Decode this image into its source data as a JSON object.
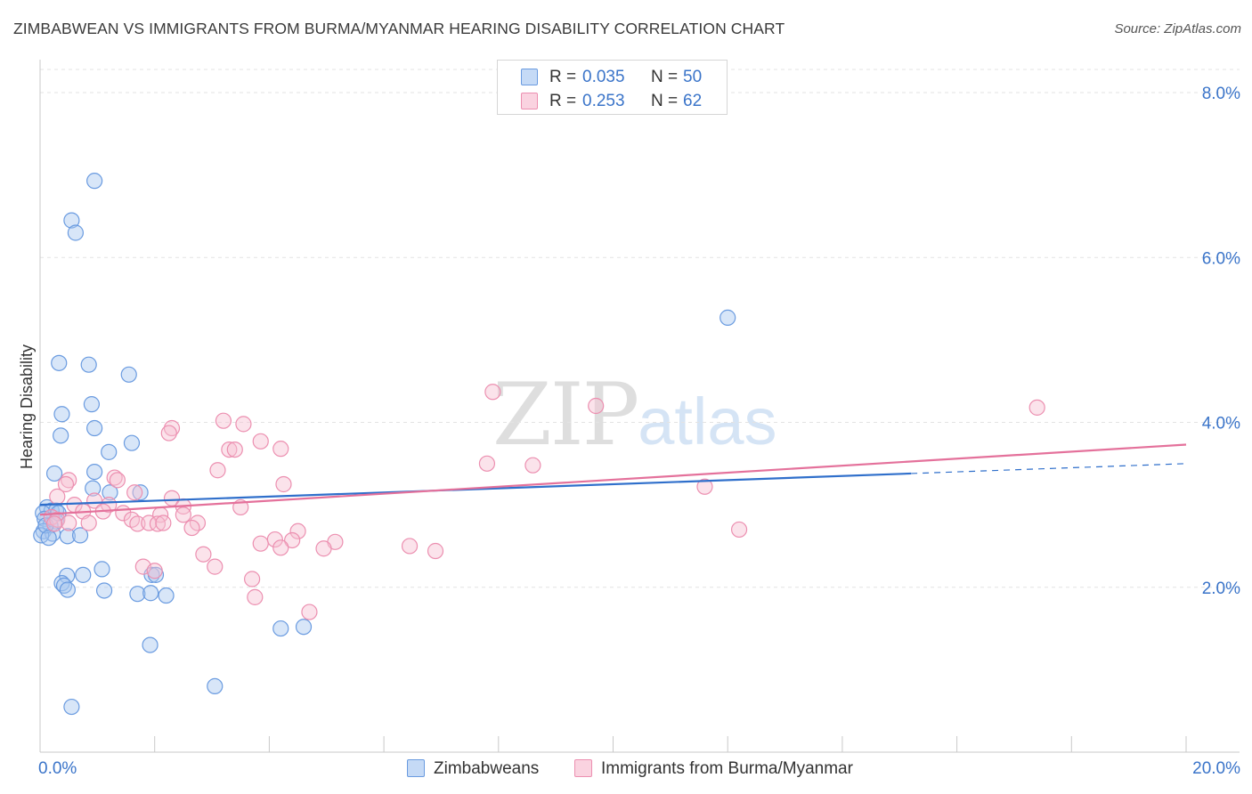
{
  "title": "ZIMBABWEAN VS IMMIGRANTS FROM BURMA/MYANMAR HEARING DISABILITY CORRELATION CHART",
  "source": "Source: ZipAtlas.com",
  "watermark": {
    "zip": "ZIP",
    "atlas": "atlas"
  },
  "colors": {
    "blue_fill": "#a9c8f0",
    "blue_stroke": "#6a9be0",
    "blue_line": "#2f6fcb",
    "pink_fill": "#f7c0d2",
    "pink_stroke": "#ec8fb0",
    "pink_line": "#e4719b",
    "tick_label": "#3a74c9",
    "grid": "#e3e3e3"
  },
  "legend": {
    "series1": {
      "r_label": "R = ",
      "r_value": "0.035",
      "n_label": "N = ",
      "n_value": "50"
    },
    "series2": {
      "r_label": "R = ",
      "r_value": "0.253",
      "n_label": "N = ",
      "n_value": "62"
    }
  },
  "chart_data": {
    "type": "scatter",
    "title": "ZIMBABWEAN VS IMMIGRANTS FROM BURMA/MYANMAR HEARING DISABILITY CORRELATION CHART",
    "xlabel": "",
    "ylabel": "Hearing Disability",
    "xlim": [
      0,
      20
    ],
    "ylim": [
      0,
      8.4
    ],
    "y_ticks": [
      2,
      4,
      6,
      8
    ],
    "y_tick_labels": [
      "2.0%",
      "4.0%",
      "6.0%",
      "8.0%"
    ],
    "x_tick_labels": {
      "min": "0.0%",
      "max": "20.0%"
    },
    "legend_position": "top-center",
    "series": [
      {
        "name": "Zimbabweans",
        "r": 0.035,
        "n": 50,
        "trend": {
          "x0": 0,
          "y0": 3.0,
          "x1": 15.2,
          "y1": 3.38,
          "dash_to_x": 20,
          "dash_to_y": 3.5
        },
        "points": [
          [
            0.95,
            6.93
          ],
          [
            0.55,
            6.45
          ],
          [
            0.62,
            6.3
          ],
          [
            12.0,
            5.27
          ],
          [
            0.33,
            4.72
          ],
          [
            0.85,
            4.7
          ],
          [
            1.55,
            4.58
          ],
          [
            0.9,
            4.22
          ],
          [
            0.38,
            4.1
          ],
          [
            0.95,
            3.93
          ],
          [
            0.36,
            3.84
          ],
          [
            1.6,
            3.75
          ],
          [
            1.2,
            3.64
          ],
          [
            0.25,
            3.38
          ],
          [
            0.95,
            3.4
          ],
          [
            0.92,
            3.2
          ],
          [
            1.22,
            3.15
          ],
          [
            1.75,
            3.15
          ],
          [
            0.12,
            2.97
          ],
          [
            0.2,
            2.93
          ],
          [
            0.28,
            2.93
          ],
          [
            0.05,
            2.9
          ],
          [
            0.08,
            2.83
          ],
          [
            0.28,
            2.8
          ],
          [
            0.18,
            2.75
          ],
          [
            0.06,
            2.68
          ],
          [
            0.22,
            2.65
          ],
          [
            0.02,
            2.63
          ],
          [
            0.48,
            2.62
          ],
          [
            0.7,
            2.63
          ],
          [
            1.08,
            2.22
          ],
          [
            0.47,
            2.14
          ],
          [
            0.75,
            2.15
          ],
          [
            1.95,
            2.15
          ],
          [
            2.02,
            2.15
          ],
          [
            0.38,
            2.05
          ],
          [
            0.42,
            2.02
          ],
          [
            0.48,
            1.97
          ],
          [
            1.12,
            1.96
          ],
          [
            1.7,
            1.92
          ],
          [
            1.93,
            1.93
          ],
          [
            2.2,
            1.9
          ],
          [
            4.2,
            1.5
          ],
          [
            4.6,
            1.52
          ],
          [
            1.92,
            1.3
          ],
          [
            3.05,
            0.8
          ],
          [
            0.55,
            0.55
          ],
          [
            0.1,
            2.75
          ],
          [
            0.15,
            2.6
          ],
          [
            0.32,
            2.9
          ]
        ]
      },
      {
        "name": "Immigrants from Burma/Myanmar",
        "r": 0.253,
        "n": 62,
        "trend": {
          "x0": 0,
          "y0": 2.88,
          "x1": 20,
          "y1": 3.73
        },
        "points": [
          [
            7.9,
            4.37
          ],
          [
            9.7,
            4.2
          ],
          [
            17.4,
            4.18
          ],
          [
            3.2,
            4.02
          ],
          [
            3.55,
            3.98
          ],
          [
            2.3,
            3.93
          ],
          [
            2.25,
            3.87
          ],
          [
            3.85,
            3.77
          ],
          [
            3.3,
            3.67
          ],
          [
            3.4,
            3.67
          ],
          [
            4.2,
            3.68
          ],
          [
            7.8,
            3.5
          ],
          [
            8.6,
            3.48
          ],
          [
            3.1,
            3.42
          ],
          [
            0.5,
            3.3
          ],
          [
            1.3,
            3.33
          ],
          [
            1.35,
            3.3
          ],
          [
            4.25,
            3.25
          ],
          [
            1.65,
            3.15
          ],
          [
            11.6,
            3.22
          ],
          [
            0.95,
            3.05
          ],
          [
            2.3,
            3.08
          ],
          [
            0.6,
            3.0
          ],
          [
            1.2,
            3.0
          ],
          [
            2.5,
            2.98
          ],
          [
            3.5,
            2.97
          ],
          [
            0.75,
            2.92
          ],
          [
            1.1,
            2.92
          ],
          [
            1.45,
            2.9
          ],
          [
            2.1,
            2.88
          ],
          [
            2.5,
            2.88
          ],
          [
            0.2,
            2.85
          ],
          [
            0.3,
            2.82
          ],
          [
            1.6,
            2.82
          ],
          [
            0.5,
            2.78
          ],
          [
            0.25,
            2.77
          ],
          [
            1.7,
            2.77
          ],
          [
            1.9,
            2.78
          ],
          [
            2.05,
            2.77
          ],
          [
            2.15,
            2.78
          ],
          [
            0.85,
            2.78
          ],
          [
            2.75,
            2.78
          ],
          [
            2.65,
            2.72
          ],
          [
            4.5,
            2.68
          ],
          [
            12.2,
            2.7
          ],
          [
            4.1,
            2.58
          ],
          [
            4.4,
            2.57
          ],
          [
            3.85,
            2.53
          ],
          [
            5.15,
            2.55
          ],
          [
            4.95,
            2.47
          ],
          [
            4.2,
            2.48
          ],
          [
            6.45,
            2.5
          ],
          [
            6.9,
            2.44
          ],
          [
            2.85,
            2.4
          ],
          [
            3.05,
            2.25
          ],
          [
            1.8,
            2.25
          ],
          [
            2.0,
            2.2
          ],
          [
            3.7,
            2.1
          ],
          [
            3.75,
            1.88
          ],
          [
            4.7,
            1.7
          ],
          [
            0.45,
            3.25
          ],
          [
            0.3,
            3.1
          ]
        ]
      }
    ]
  }
}
